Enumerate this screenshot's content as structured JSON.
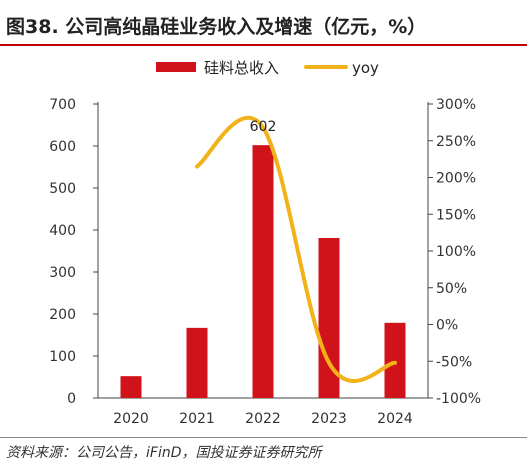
{
  "title": "图38. 公司高纯晶硅业务收入及增速（亿元，%）",
  "source": "资料来源：公司公告，iFinD，国投证券证券研究所",
  "colors": {
    "bar": "#d0121b",
    "line": "#f2b21a",
    "title_rule": "#c00000"
  },
  "chart_data": {
    "type": "bar",
    "title": "图38. 公司高纯晶硅业务收入及增速（亿元，%）",
    "categories": [
      "2020",
      "2021",
      "2022",
      "2023",
      "2024"
    ],
    "series": [
      {
        "name": "硅料总收入",
        "type": "bar",
        "axis": "left",
        "values": [
          52,
          167,
          602,
          381,
          179
        ]
      },
      {
        "name": "yoy",
        "type": "line",
        "axis": "right",
        "values": [
          null,
          215,
          268,
          -52,
          -52
        ]
      }
    ],
    "data_labels": [
      {
        "series": "硅料总收入",
        "category": "2022",
        "text": "602"
      }
    ],
    "left_axis": {
      "ylim": [
        0,
        700
      ],
      "ticks": [
        "700",
        "600",
        "500",
        "400",
        "300",
        "200",
        "100",
        "0"
      ]
    },
    "right_axis": {
      "ylim": [
        -100,
        300
      ],
      "ticks": [
        "300%",
        "250%",
        "200%",
        "150%",
        "100%",
        "50%",
        "0%",
        "-50%",
        "-100%"
      ]
    },
    "legend": {
      "position": "top",
      "items": [
        "硅料总收入",
        "yoy"
      ]
    },
    "grid": false
  }
}
